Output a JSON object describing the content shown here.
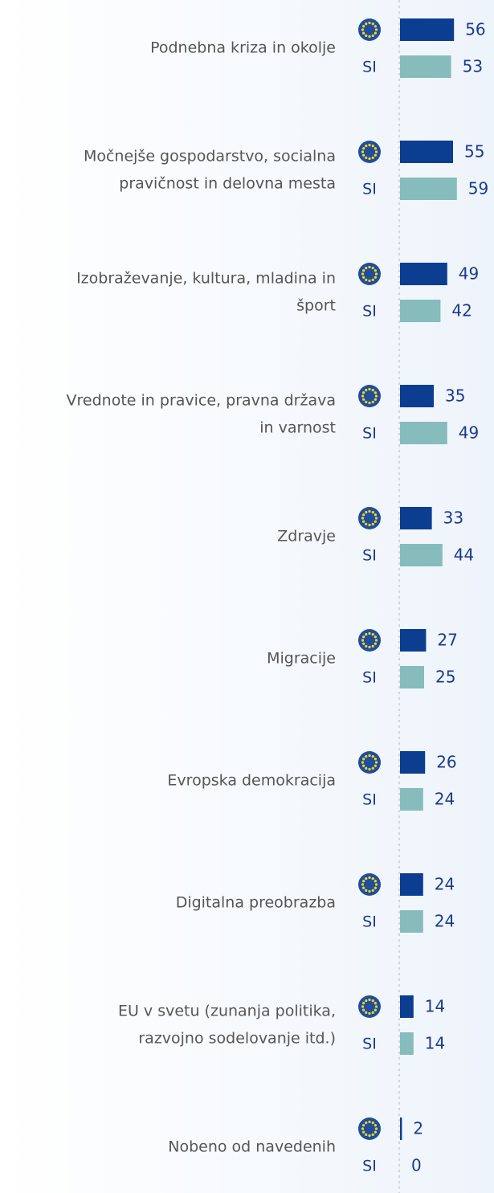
{
  "chart_data": {
    "type": "bar",
    "orientation": "horizontal",
    "categories": [
      [
        "Podnebna kriza in okolje"
      ],
      [
        "Močnejše gospodarstvo, socialna",
        "pravičnost in delovna mesta"
      ],
      [
        "Izobraževanje, kultura, mladina in",
        "šport"
      ],
      [
        "Vrednote in pravice, pravna država",
        "in varnost"
      ],
      [
        "Zdravje"
      ],
      [
        "Migracije"
      ],
      [
        "Evropska demokracija"
      ],
      [
        "Digitalna preobrazba"
      ],
      [
        "EU v svetu (zunanja politika,",
        "razvojno sodelovanje itd.)"
      ],
      [
        "Nobeno od navedenih"
      ]
    ],
    "series": [
      {
        "color": "#0b3d91",
        "values": [
          56,
          55,
          49,
          35,
          33,
          27,
          26,
          24,
          14,
          2
        ]
      },
      {
        "name": "SI",
        "color": "#86bcbc",
        "values": [
          53,
          59,
          42,
          49,
          44,
          25,
          24,
          24,
          14,
          0
        ]
      }
    ]
  }
}
